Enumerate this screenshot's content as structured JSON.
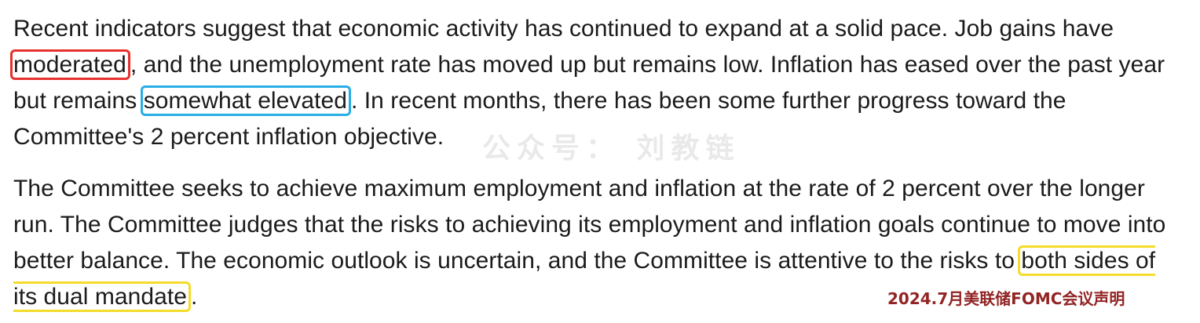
{
  "paragraph1": {
    "part1": "Recent indicators suggest that economic activity has continued to expand at a solid pace. Job gains have ",
    "highlight_red": "moderated",
    "part2": ", and the unemployment rate has moved up but remains low. Inflation has eased over the past year but remains ",
    "highlight_blue": "somewhat elevated",
    "part3": ". In recent months, there has been some further progress toward the Committee's 2 percent inflation objective."
  },
  "paragraph2": {
    "part1": "The Committee seeks to achieve maximum employment and inflation at the rate of 2 percent over the longer run. The Committee judges that the risks to achieving its employment and inflation goals continue to move into better balance. The economic outlook is uncertain, and the Committee is attentive to the risks to ",
    "highlight_yellow": "both sides of its dual mandate",
    "part2": "."
  },
  "watermark": "公众号： 刘教链",
  "source_label": "2024.7月美联储FOMC会议声明",
  "colors": {
    "highlight_red": "#e8302d",
    "highlight_blue": "#27aee6",
    "highlight_yellow": "#f5dc2b",
    "source_label": "#922424"
  }
}
